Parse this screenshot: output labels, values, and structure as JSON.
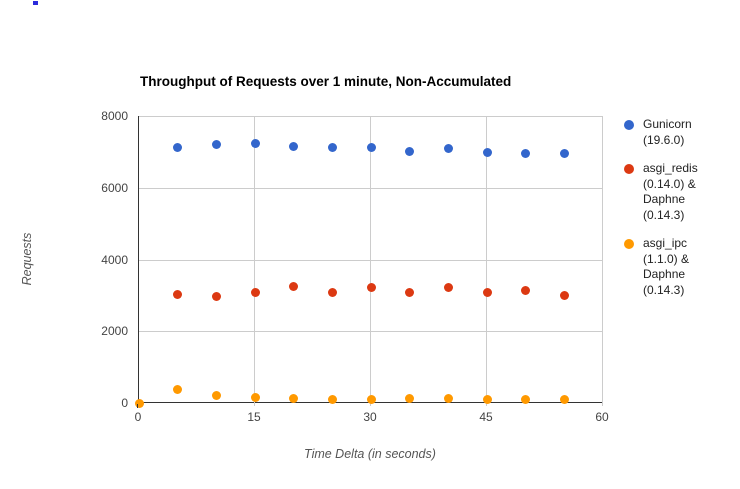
{
  "decorations": {
    "top_left_mark_color": "#2b2bdb"
  },
  "chart_data": {
    "type": "scatter",
    "title": "Throughput of Requests over 1 minute, Non-Accumulated",
    "xlabel": "Time Delta (in seconds)",
    "ylabel": "Requests",
    "xlim": [
      0,
      60
    ],
    "ylim": [
      0,
      8000
    ],
    "xticks": [
      0,
      15,
      30,
      45,
      60
    ],
    "yticks": [
      0,
      2000,
      4000,
      6000,
      8000
    ],
    "grid": true,
    "legend_position": "right",
    "series": [
      {
        "name": "Gunicorn (19.6.0)",
        "color": "#3366CC",
        "x": [
          5,
          10,
          15,
          20,
          25,
          30,
          35,
          40,
          45,
          50,
          55
        ],
        "y": [
          7130,
          7200,
          7230,
          7140,
          7130,
          7110,
          7010,
          7100,
          6990,
          6960,
          6950
        ]
      },
      {
        "name": "asgi_redis (0.14.0) & Daphne (0.14.3)",
        "color": "#DC3912",
        "x": [
          5,
          10,
          15,
          20,
          25,
          30,
          35,
          40,
          45,
          50,
          55
        ],
        "y": [
          3020,
          2980,
          3070,
          3260,
          3080,
          3230,
          3090,
          3230,
          3090,
          3130,
          3000
        ]
      },
      {
        "name": "asgi_ipc (1.1.0) & Daphne (0.14.3)",
        "color": "#FF9900",
        "x": [
          0,
          5,
          10,
          15,
          20,
          25,
          30,
          35,
          40,
          45,
          50,
          55
        ],
        "y": [
          0,
          390,
          205,
          140,
          115,
          110,
          110,
          130,
          130,
          110,
          105,
          90
        ]
      }
    ]
  }
}
